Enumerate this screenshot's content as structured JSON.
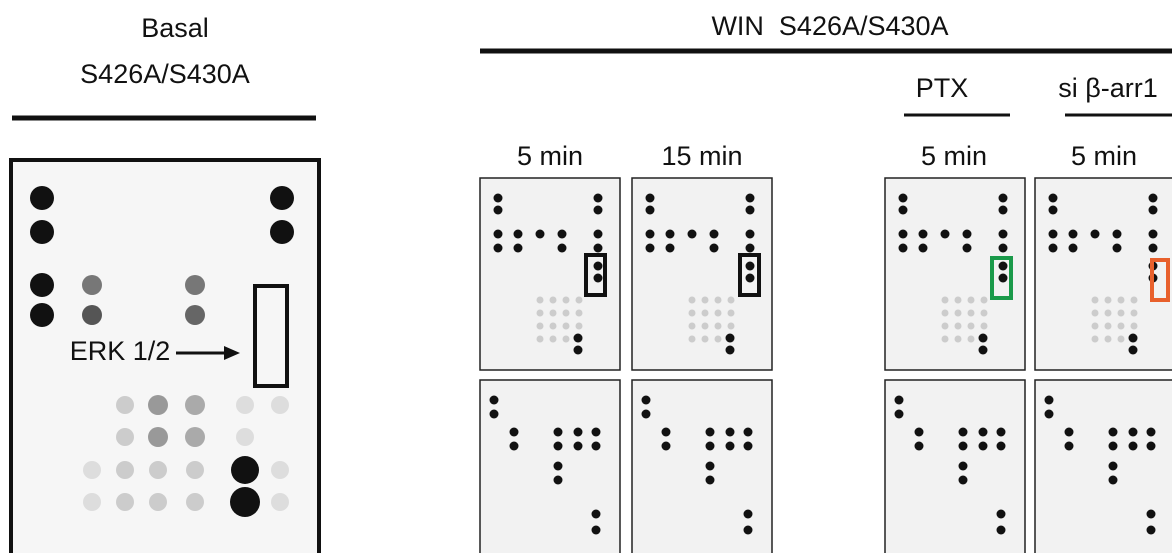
{
  "left": {
    "title": "Basal",
    "subtitle": "S426A/S430A",
    "arrow_label": "ERK 1/2"
  },
  "right": {
    "title": "WIN  S426A/S430A",
    "groups": [
      "PTX",
      "si β-arr1"
    ],
    "panels": [
      "5 min",
      "15 min",
      "5 min",
      "5 min"
    ]
  }
}
